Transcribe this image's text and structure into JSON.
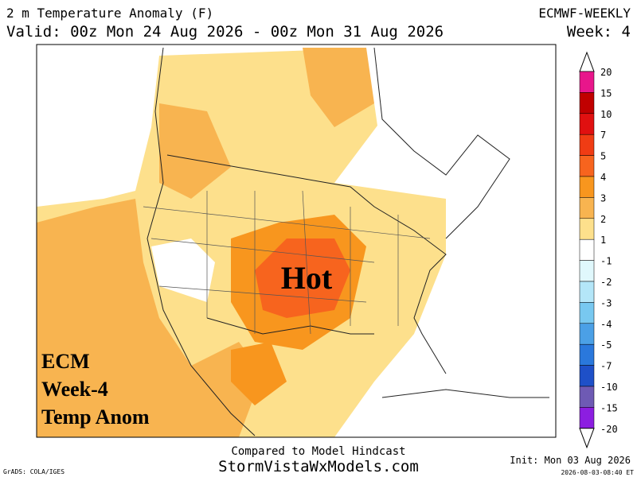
{
  "header": {
    "title": "2 m Temperature Anomaly (F)",
    "valid": "Valid: 00z Mon 24 Aug 2026 - 00z Mon 31 Aug 2026",
    "model": "ECMWF-WEEKLY",
    "week": "Week: 4"
  },
  "map": {
    "annotation": "Hot",
    "label_lines": [
      "ECM",
      "Week-4",
      "Temp Anom"
    ]
  },
  "colorbar": {
    "labels": [
      20,
      15,
      10,
      7,
      5,
      4,
      3,
      2,
      1,
      -1,
      -2,
      -3,
      -4,
      -5,
      -7,
      -10,
      -15,
      -20
    ],
    "colors": [
      "#e8168b",
      "#c00000",
      "#e01010",
      "#f03c14",
      "#f7641e",
      "#f8961e",
      "#f8b450",
      "#fde08c",
      "#ffffff",
      "#e0f8fc",
      "#b4e6f8",
      "#78c8f0",
      "#4ba0e6",
      "#2a78dc",
      "#1e50c8",
      "#6e5ab4",
      "#8c1ee0"
    ]
  },
  "footer": {
    "note": "Compared to Model Hindcast",
    "site": "StormVistaWxModels.com",
    "init": "Init: Mon 03 Aug 2026",
    "credit": "GrADS: COLA/IGES",
    "timestamp": "2026-08-03-08:40 ET"
  }
}
